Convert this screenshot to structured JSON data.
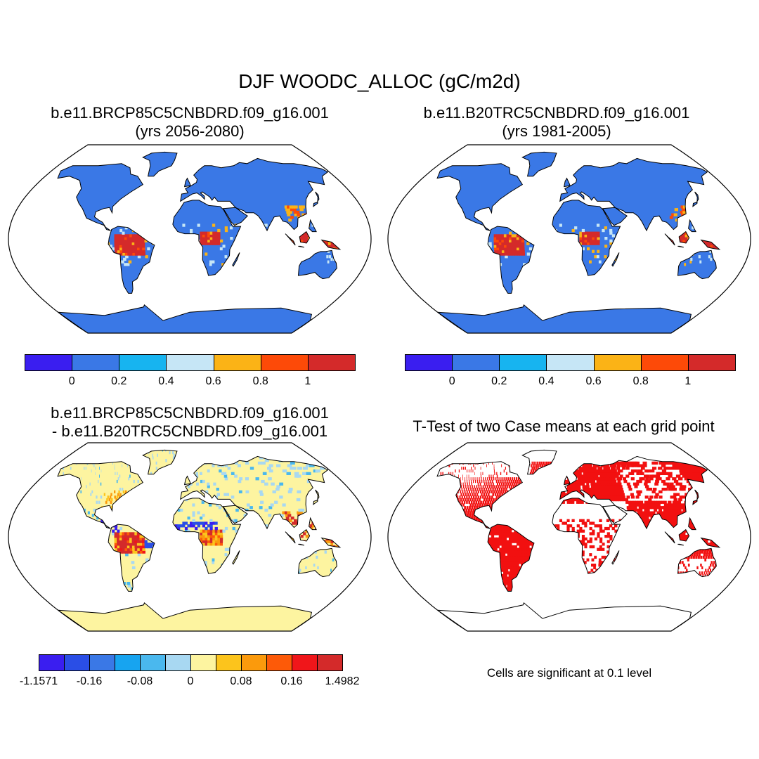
{
  "figure": {
    "title": "DJF WOODC_ALLOC (gC/m2d)"
  },
  "panels": [
    {
      "id": "top-left",
      "title_lines": [
        "b.e11.BRCP85C5CNBDRD.f09_g16.001",
        "(yrs 2056-2080)"
      ],
      "colorbar": {
        "colors": [
          "#3a1ef0",
          "#3a78e6",
          "#17b4f0",
          "#c6e6f6",
          "#fbb316",
          "#fd4a08",
          "#d42a2a"
        ],
        "labels": [
          "0",
          "0.2",
          "0.4",
          "0.6",
          "0.8",
          "1"
        ]
      }
    },
    {
      "id": "top-right",
      "title_lines": [
        "b.e11.B20TRC5CNBDRD.f09_g16.001",
        "(yrs 1981-2005)"
      ],
      "colorbar": {
        "colors": [
          "#3a1ef0",
          "#3a78e6",
          "#17b4f0",
          "#c6e6f6",
          "#fbb316",
          "#fd4a08",
          "#d42a2a"
        ],
        "labels": [
          "0",
          "0.2",
          "0.4",
          "0.6",
          "0.8",
          "1"
        ]
      }
    },
    {
      "id": "bottom-left",
      "title_lines": [
        "b.e11.BRCP85C5CNBDRD.f09_g16.001",
        "- b.e11.B20TRC5CNBDRD.f09_g16.001"
      ],
      "colorbar": {
        "colors": [
          "#3a1ef0",
          "#2a4ee6",
          "#3a78e6",
          "#17a4f0",
          "#4ab8ee",
          "#a8d8f2",
          "#fdf4a0",
          "#fcc41c",
          "#fb9a0c",
          "#fd5a08",
          "#f0161a",
          "#d42a2a"
        ],
        "labels": [
          "-1.1571",
          "-0.16",
          "-0.08",
          "0",
          "0.08",
          "0.16",
          "1.4982"
        ]
      }
    },
    {
      "id": "bottom-right",
      "title_lines": [
        "T-Test of two Case means at each grid point"
      ],
      "footnote": "Cells are significant at 0.1 level"
    }
  ]
}
